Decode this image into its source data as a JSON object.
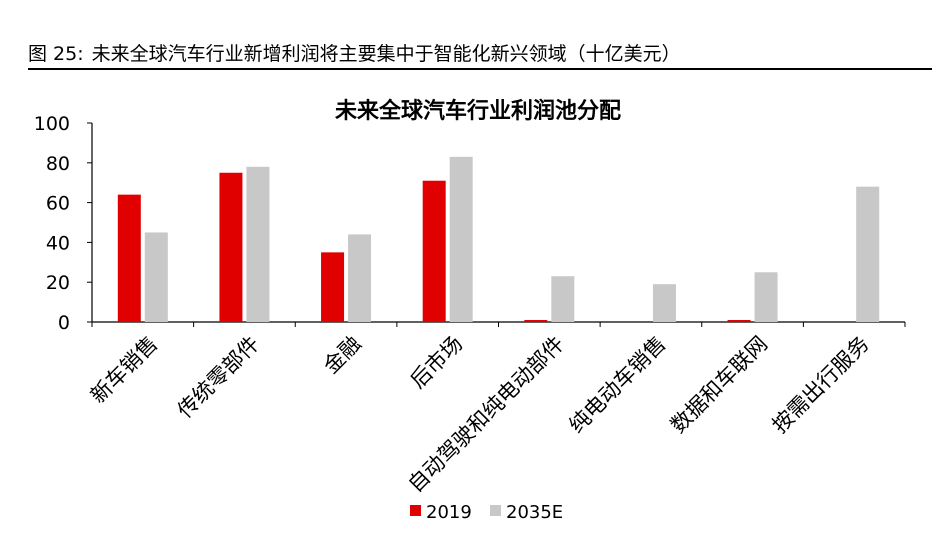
{
  "figure": {
    "label": "图 25:",
    "caption": "未来全球汽车行业新增利润将主要集中于智能化新兴领域（十亿美元）"
  },
  "chart_data": {
    "type": "bar",
    "title": "未来全球汽车行业利润池分配",
    "xlabel": "",
    "ylabel": "",
    "ylim": [
      0,
      100
    ],
    "yticks": [
      0,
      20,
      40,
      60,
      80,
      100
    ],
    "categories": [
      "新车销售",
      "传统零部件",
      "金融",
      "后市场",
      "自动驾驶和纯电动部件",
      "纯电动车销售",
      "数据和车联网",
      "按需出行服务"
    ],
    "series": [
      {
        "name": "2019",
        "color": "#e00000",
        "values": [
          64,
          75,
          35,
          71,
          1,
          0,
          1,
          0
        ]
      },
      {
        "name": "2035E",
        "color": "#c8c8c8",
        "values": [
          45,
          78,
          44,
          83,
          23,
          19,
          25,
          68
        ]
      }
    ],
    "grid": false,
    "legend": "bottom"
  }
}
